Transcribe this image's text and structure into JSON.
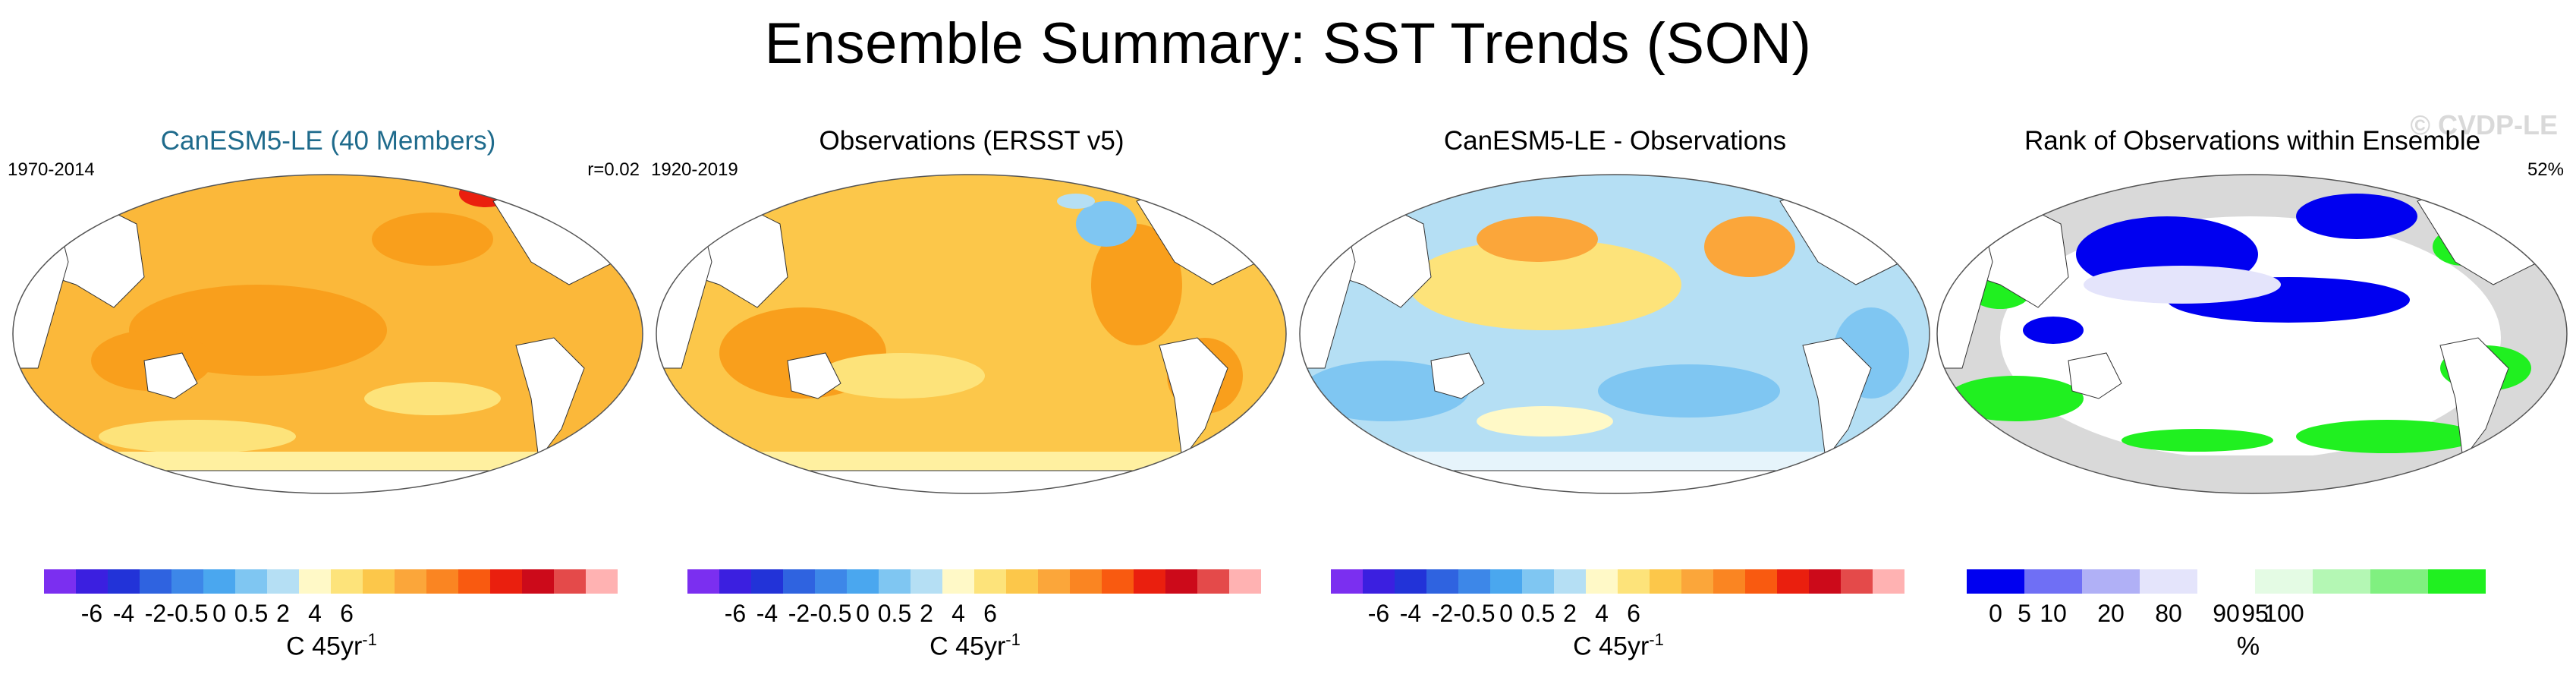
{
  "title": "Ensemble Summary: SST Trends (SON)",
  "watermark": "© CVDP-LE",
  "panels": [
    {
      "title": "CanESM5-LE (40 Members)",
      "left_label": "1970-2014",
      "right_label": "r=0.02",
      "colorbar": {
        "colors": [
          "#7b2ff0",
          "#3b1fe0",
          "#2233d8",
          "#2f63e0",
          "#3d87e8",
          "#4aa7ef",
          "#7fc6f2",
          "#b5dff4",
          "#fff9c7",
          "#fde37a",
          "#fcc74a",
          "#fba63a",
          "#fa8522",
          "#f95a10",
          "#ea1f0e",
          "#cc0a1a",
          "#e44a4a",
          "#ffb2b2"
        ],
        "ticks": [
          "-6",
          "-4",
          "-2",
          "-0.5",
          "0",
          "0.5",
          "2",
          "4",
          "6"
        ],
        "unit": "C 45yr",
        "unit_sup": "-1"
      }
    },
    {
      "title": "Observations (ERSST v5)",
      "left_label": "1920-2019",
      "right_label": "",
      "colorbar": {
        "colors": [
          "#7b2ff0",
          "#3b1fe0",
          "#2233d8",
          "#2f63e0",
          "#3d87e8",
          "#4aa7ef",
          "#7fc6f2",
          "#b5dff4",
          "#fff9c7",
          "#fde37a",
          "#fcc74a",
          "#fba63a",
          "#fa8522",
          "#f95a10",
          "#ea1f0e",
          "#cc0a1a",
          "#e44a4a",
          "#ffb2b2"
        ],
        "ticks": [
          "-6",
          "-4",
          "-2",
          "-0.5",
          "0",
          "0.5",
          "2",
          "4",
          "6"
        ],
        "unit": "C 45yr",
        "unit_sup": "-1"
      }
    },
    {
      "title": "CanESM5-LE - Observations",
      "left_label": "",
      "right_label": "",
      "colorbar": {
        "colors": [
          "#7b2ff0",
          "#3b1fe0",
          "#2233d8",
          "#2f63e0",
          "#3d87e8",
          "#4aa7ef",
          "#7fc6f2",
          "#b5dff4",
          "#fff9c7",
          "#fde37a",
          "#fcc74a",
          "#fba63a",
          "#fa8522",
          "#f95a10",
          "#ea1f0e",
          "#cc0a1a",
          "#e44a4a",
          "#ffb2b2"
        ],
        "ticks": [
          "-6",
          "-4",
          "-2",
          "-0.5",
          "0",
          "0.5",
          "2",
          "4",
          "6"
        ],
        "unit": "C 45yr",
        "unit_sup": "-1"
      }
    },
    {
      "title": "Rank of Observations within Ensemble",
      "left_label": "",
      "right_label": "52%",
      "colorbar": {
        "colors": [
          "#0000f0",
          "#6f6ff5",
          "#b0b0f6",
          "#e4e4fb",
          "#ffffff",
          "#e4fbe4",
          "#b4f7b4",
          "#80f080",
          "#20f020"
        ],
        "ticks": [
          "0",
          "5",
          "10",
          "20",
          "80",
          "90",
          "95",
          "100"
        ],
        "unit": "%",
        "unit_sup": ""
      }
    }
  ]
}
